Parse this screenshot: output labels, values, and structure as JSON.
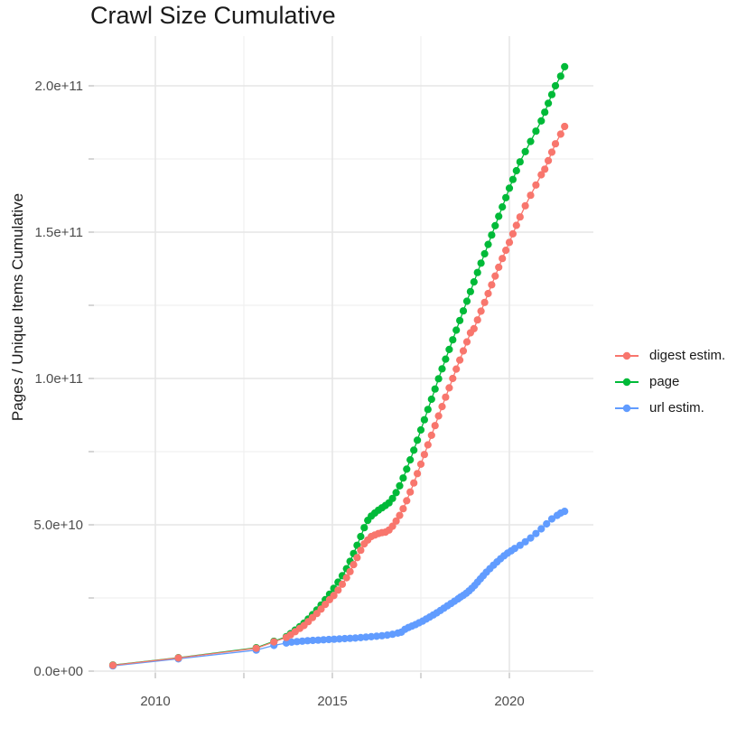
{
  "chart_data": {
    "type": "line",
    "title": "Crawl Size Cumulative",
    "x_axis": {
      "tick_labels": [
        "2010",
        "2015",
        "2020"
      ],
      "tick_values": [
        2010,
        2015,
        2020
      ],
      "minor_tick_values": [
        2012.5,
        2017.5
      ],
      "range": [
        2008.3,
        2022.4
      ]
    },
    "y_axis": {
      "title": "Pages / Unique Items Cumulative",
      "tick_labels": [
        "0.0e+00",
        "5.0e+10",
        "1.0e+11",
        "1.5e+11",
        "2.0e+11"
      ],
      "tick_values_billion": [
        0,
        50,
        100,
        150,
        200
      ],
      "minor_tick_values_billion": [
        25,
        75,
        125,
        175
      ],
      "range_billion": [
        0,
        217
      ]
    },
    "value_unit": "items, value x 1e9",
    "grid": true,
    "legend_position": "right",
    "series": [
      {
        "name": "digest estim.",
        "color": "#F8766D",
        "points": [
          [
            2008.8,
            2.0
          ],
          [
            2010.65,
            4.5
          ],
          [
            2012.85,
            7.8
          ],
          [
            2013.35,
            10.0
          ],
          [
            2013.7,
            11.5
          ],
          [
            2013.82,
            12.4
          ],
          [
            2013.95,
            13.5
          ],
          [
            2014.08,
            14.6
          ],
          [
            2014.2,
            15.6
          ],
          [
            2014.32,
            16.9
          ],
          [
            2014.44,
            18.3
          ],
          [
            2014.56,
            19.7
          ],
          [
            2014.68,
            21.2
          ],
          [
            2014.8,
            22.8
          ],
          [
            2014.92,
            24.4
          ],
          [
            2015.04,
            25.8
          ],
          [
            2015.16,
            27.7
          ],
          [
            2015.28,
            29.7
          ],
          [
            2015.4,
            31.9
          ],
          [
            2015.5,
            34.0
          ],
          [
            2015.6,
            36.4
          ],
          [
            2015.7,
            38.8
          ],
          [
            2015.8,
            41.3
          ],
          [
            2015.9,
            43.5
          ],
          [
            2016.0,
            44.8
          ],
          [
            2016.1,
            46.0
          ],
          [
            2016.2,
            46.5
          ],
          [
            2016.3,
            47.0
          ],
          [
            2016.4,
            47.3
          ],
          [
            2016.5,
            47.5
          ],
          [
            2016.6,
            48.2
          ],
          [
            2016.7,
            49.5
          ],
          [
            2016.8,
            51.3
          ],
          [
            2016.9,
            53.2
          ],
          [
            2017.0,
            55.5
          ],
          [
            2017.1,
            58.2
          ],
          [
            2017.2,
            61.2
          ],
          [
            2017.3,
            64.3
          ],
          [
            2017.4,
            67.5
          ],
          [
            2017.5,
            70.7
          ],
          [
            2017.6,
            74.0
          ],
          [
            2017.7,
            77.3
          ],
          [
            2017.8,
            80.6
          ],
          [
            2017.9,
            83.9
          ],
          [
            2018.0,
            87.2
          ],
          [
            2018.1,
            90.4
          ],
          [
            2018.2,
            93.6
          ],
          [
            2018.3,
            96.8
          ],
          [
            2018.4,
            100.0
          ],
          [
            2018.5,
            103.2
          ],
          [
            2018.6,
            106.3
          ],
          [
            2018.7,
            109.4
          ],
          [
            2018.8,
            112.5
          ],
          [
            2018.9,
            115.6
          ],
          [
            2019.0,
            117.0
          ],
          [
            2019.1,
            120.0
          ],
          [
            2019.2,
            123.0
          ],
          [
            2019.3,
            126.0
          ],
          [
            2019.4,
            129.0
          ],
          [
            2019.5,
            132.0
          ],
          [
            2019.6,
            135.0
          ],
          [
            2019.7,
            138.0
          ],
          [
            2019.8,
            141.0
          ],
          [
            2019.9,
            143.8
          ],
          [
            2020.0,
            146.5
          ],
          [
            2020.1,
            149.4
          ],
          [
            2020.2,
            152.3
          ],
          [
            2020.3,
            155.2
          ],
          [
            2020.45,
            159.0
          ],
          [
            2020.6,
            162.6
          ],
          [
            2020.75,
            166.1
          ],
          [
            2020.9,
            169.6
          ],
          [
            2021.0,
            171.5
          ],
          [
            2021.1,
            174.4
          ],
          [
            2021.2,
            177.3
          ],
          [
            2021.3,
            180.2
          ],
          [
            2021.45,
            183.5
          ],
          [
            2021.56,
            186.1
          ]
        ]
      },
      {
        "name": "page",
        "color": "#00BA38",
        "points": [
          [
            2008.8,
            2.1
          ],
          [
            2010.65,
            4.6
          ],
          [
            2012.85,
            8.0
          ],
          [
            2013.35,
            10.2
          ],
          [
            2013.7,
            11.8
          ],
          [
            2013.82,
            12.8
          ],
          [
            2013.95,
            14.0
          ],
          [
            2014.08,
            15.2
          ],
          [
            2014.2,
            16.4
          ],
          [
            2014.32,
            17.8
          ],
          [
            2014.44,
            19.3
          ],
          [
            2014.56,
            20.9
          ],
          [
            2014.68,
            22.6
          ],
          [
            2014.8,
            24.4
          ],
          [
            2014.92,
            26.3
          ],
          [
            2015.04,
            28.3
          ],
          [
            2015.16,
            30.4
          ],
          [
            2015.28,
            32.6
          ],
          [
            2015.4,
            35.0
          ],
          [
            2015.5,
            37.5
          ],
          [
            2015.6,
            40.2
          ],
          [
            2015.7,
            43.0
          ],
          [
            2015.8,
            46.0
          ],
          [
            2015.9,
            49.0
          ],
          [
            2016.0,
            51.5
          ],
          [
            2016.1,
            53.0
          ],
          [
            2016.2,
            54.0
          ],
          [
            2016.3,
            55.0
          ],
          [
            2016.4,
            55.8
          ],
          [
            2016.5,
            56.6
          ],
          [
            2016.6,
            57.5
          ],
          [
            2016.7,
            59.0
          ],
          [
            2016.8,
            61.0
          ],
          [
            2016.9,
            63.3
          ],
          [
            2017.0,
            66.0
          ],
          [
            2017.1,
            69.0
          ],
          [
            2017.2,
            72.2
          ],
          [
            2017.3,
            75.5
          ],
          [
            2017.4,
            78.9
          ],
          [
            2017.5,
            82.4
          ],
          [
            2017.6,
            85.9
          ],
          [
            2017.7,
            89.4
          ],
          [
            2017.8,
            92.9
          ],
          [
            2017.9,
            96.4
          ],
          [
            2018.0,
            99.9
          ],
          [
            2018.1,
            103.3
          ],
          [
            2018.2,
            106.6
          ],
          [
            2018.3,
            109.9
          ],
          [
            2018.4,
            113.2
          ],
          [
            2018.5,
            116.5
          ],
          [
            2018.6,
            119.8
          ],
          [
            2018.7,
            123.1
          ],
          [
            2018.8,
            126.4
          ],
          [
            2018.9,
            129.7
          ],
          [
            2019.0,
            133.0
          ],
          [
            2019.1,
            136.2
          ],
          [
            2019.2,
            139.4
          ],
          [
            2019.3,
            142.6
          ],
          [
            2019.4,
            145.8
          ],
          [
            2019.5,
            149.0
          ],
          [
            2019.6,
            152.2
          ],
          [
            2019.7,
            155.4
          ],
          [
            2019.8,
            158.6
          ],
          [
            2019.9,
            161.8
          ],
          [
            2020.0,
            165.0
          ],
          [
            2020.1,
            168.0
          ],
          [
            2020.2,
            171.0
          ],
          [
            2020.3,
            174.0
          ],
          [
            2020.45,
            177.5
          ],
          [
            2020.6,
            181.0
          ],
          [
            2020.75,
            184.5
          ],
          [
            2020.9,
            188.0
          ],
          [
            2021.0,
            191.0
          ],
          [
            2021.1,
            194.0
          ],
          [
            2021.2,
            197.0
          ],
          [
            2021.3,
            200.0
          ],
          [
            2021.45,
            203.3
          ],
          [
            2021.56,
            206.5
          ]
        ]
      },
      {
        "name": "url estim.",
        "color": "#619CFF",
        "points": [
          [
            2008.8,
            1.8
          ],
          [
            2010.65,
            4.2
          ],
          [
            2012.85,
            7.2
          ],
          [
            2013.35,
            8.8
          ],
          [
            2013.7,
            9.6
          ],
          [
            2013.85,
            9.9
          ],
          [
            2014.0,
            10.1
          ],
          [
            2014.15,
            10.25
          ],
          [
            2014.3,
            10.4
          ],
          [
            2014.45,
            10.5
          ],
          [
            2014.6,
            10.6
          ],
          [
            2014.75,
            10.7
          ],
          [
            2014.9,
            10.8
          ],
          [
            2015.05,
            10.9
          ],
          [
            2015.2,
            11.0
          ],
          [
            2015.35,
            11.1
          ],
          [
            2015.5,
            11.2
          ],
          [
            2015.65,
            11.3
          ],
          [
            2015.8,
            11.45
          ],
          [
            2015.95,
            11.6
          ],
          [
            2016.1,
            11.75
          ],
          [
            2016.25,
            11.9
          ],
          [
            2016.4,
            12.1
          ],
          [
            2016.55,
            12.3
          ],
          [
            2016.7,
            12.6
          ],
          [
            2016.85,
            13.0
          ],
          [
            2016.95,
            13.3
          ],
          [
            2017.05,
            14.3
          ],
          [
            2017.15,
            14.9
          ],
          [
            2017.25,
            15.4
          ],
          [
            2017.35,
            15.9
          ],
          [
            2017.45,
            16.5
          ],
          [
            2017.55,
            17.1
          ],
          [
            2017.65,
            17.8
          ],
          [
            2017.75,
            18.5
          ],
          [
            2017.85,
            19.2
          ],
          [
            2017.95,
            19.9
          ],
          [
            2018.05,
            20.7
          ],
          [
            2018.15,
            21.5
          ],
          [
            2018.25,
            22.3
          ],
          [
            2018.35,
            23.1
          ],
          [
            2018.45,
            23.9
          ],
          [
            2018.55,
            24.7
          ],
          [
            2018.62,
            25.3
          ],
          [
            2018.7,
            25.9
          ],
          [
            2018.78,
            26.6
          ],
          [
            2018.86,
            27.4
          ],
          [
            2018.94,
            28.3
          ],
          [
            2019.02,
            29.3
          ],
          [
            2019.1,
            30.4
          ],
          [
            2019.18,
            31.5
          ],
          [
            2019.26,
            32.6
          ],
          [
            2019.35,
            33.8
          ],
          [
            2019.45,
            35.0
          ],
          [
            2019.55,
            36.2
          ],
          [
            2019.65,
            37.3
          ],
          [
            2019.75,
            38.4
          ],
          [
            2019.85,
            39.4
          ],
          [
            2019.95,
            40.3
          ],
          [
            2020.05,
            41.1
          ],
          [
            2020.15,
            41.9
          ],
          [
            2020.3,
            43.0
          ],
          [
            2020.45,
            44.2
          ],
          [
            2020.6,
            45.5
          ],
          [
            2020.75,
            47.0
          ],
          [
            2020.9,
            48.6
          ],
          [
            2021.05,
            50.3
          ],
          [
            2021.2,
            52.0
          ],
          [
            2021.35,
            53.2
          ],
          [
            2021.45,
            54.0
          ],
          [
            2021.56,
            54.6
          ]
        ]
      }
    ]
  },
  "styles": {
    "background": "#FFFFFF",
    "grid_major_color": "#E6E6E6",
    "grid_minor_color": "#F0F0F0",
    "tick_mark_color": "#C9C9C9",
    "tick_label_color": "#4D4D4D",
    "text_color": "#1A1A1A"
  }
}
